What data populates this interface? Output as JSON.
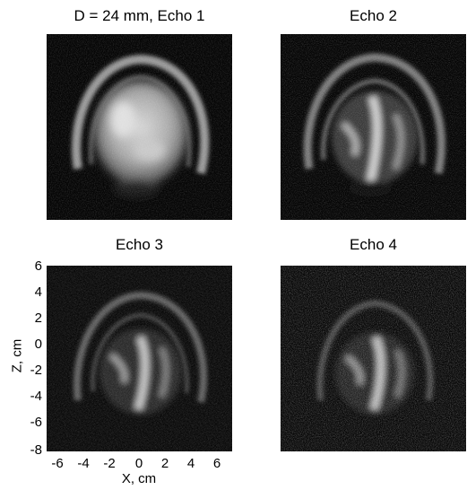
{
  "panels": [
    {
      "title": "D = 24 mm, Echo 1",
      "variant": "echo1"
    },
    {
      "title": "Echo 2",
      "variant": "echo2"
    },
    {
      "title": "Echo 3",
      "variant": "echo3"
    },
    {
      "title": "Echo 4",
      "variant": "echo4"
    }
  ],
  "axes": {
    "xlabel": "X, cm",
    "ylabel": "Z, cm",
    "xticks": [
      "-6",
      "-4",
      "-2",
      "0",
      "2",
      "4",
      "6"
    ],
    "yticks": [
      "6",
      "4",
      "2",
      "0",
      "-2",
      "-4",
      "-6",
      "-8"
    ]
  }
}
